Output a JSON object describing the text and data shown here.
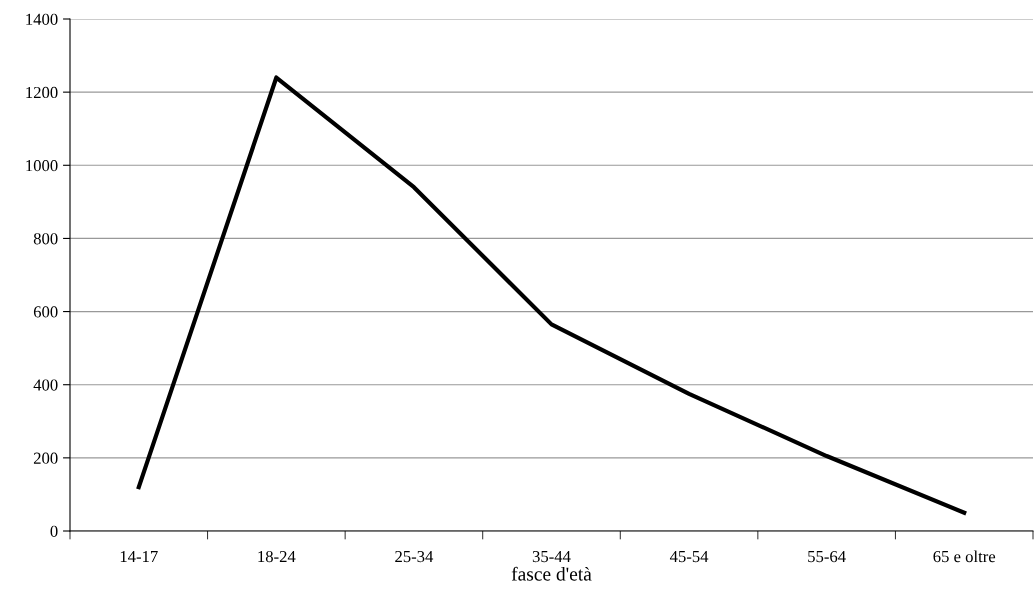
{
  "chart_data": {
    "type": "line",
    "xlabel": "fasce d'età",
    "categories": [
      "14-17",
      "18-24",
      "25-34",
      "35-44",
      "45-54",
      "55-64",
      "65 e oltre"
    ],
    "series": [
      {
        "color": "#000000",
        "values": [
          120,
          1240,
          940,
          565,
          375,
          205,
          50
        ]
      }
    ],
    "ylim": [
      0,
      1400
    ],
    "yticks": [
      0,
      200,
      400,
      600,
      800,
      1000,
      1200,
      1400
    ],
    "grid": "y",
    "marker": "none",
    "line_style": "solid"
  }
}
